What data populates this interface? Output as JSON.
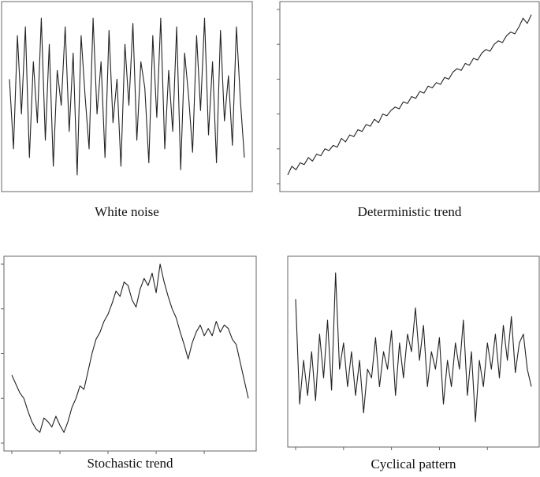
{
  "chart_data": [
    {
      "type": "line",
      "title": "White noise",
      "color": "#222",
      "ylim": [
        0,
        100
      ],
      "xlim": [
        0,
        59
      ],
      "values": [
        60,
        20,
        85,
        40,
        90,
        15,
        70,
        35,
        95,
        25,
        80,
        10,
        65,
        45,
        90,
        30,
        75,
        5,
        85,
        50,
        20,
        95,
        40,
        70,
        15,
        88,
        35,
        60,
        10,
        80,
        45,
        92,
        25,
        70,
        55,
        12,
        85,
        38,
        95,
        20,
        65,
        30,
        90,
        8,
        75,
        50,
        18,
        85,
        42,
        95,
        28,
        70,
        12,
        88,
        36,
        62,
        22,
        90,
        48,
        15
      ]
    },
    {
      "type": "line",
      "title": "Deterministic trend",
      "color": "#222",
      "ylim": [
        0,
        100
      ],
      "xlim": [
        0,
        59
      ],
      "yticks": [
        0,
        20,
        40,
        60,
        80,
        100
      ],
      "values": [
        5,
        10,
        8,
        12,
        11,
        15,
        13,
        17,
        16,
        20,
        19,
        22,
        21,
        26,
        24,
        28,
        27,
        31,
        30,
        34,
        33,
        37,
        35,
        40,
        39,
        42,
        44,
        43,
        47,
        46,
        50,
        49,
        53,
        52,
        56,
        55,
        58,
        57,
        61,
        60,
        64,
        66,
        65,
        69,
        68,
        72,
        71,
        75,
        77,
        76,
        80,
        82,
        81,
        85,
        87,
        86,
        90,
        95,
        92,
        97
      ]
    },
    {
      "type": "line",
      "title": "Stochastic trend",
      "color": "#222",
      "ylim": [
        0,
        100
      ],
      "xlim": [
        0,
        59
      ],
      "yticks": [
        0,
        25,
        50,
        75,
        100
      ],
      "xticks": [
        0,
        12,
        24,
        36,
        48
      ],
      "values": [
        38,
        33,
        28,
        25,
        18,
        12,
        8,
        6,
        14,
        12,
        9,
        15,
        10,
        6,
        12,
        20,
        25,
        32,
        30,
        40,
        50,
        58,
        62,
        68,
        72,
        78,
        85,
        82,
        90,
        88,
        80,
        76,
        86,
        92,
        88,
        95,
        84,
        100,
        90,
        82,
        75,
        70,
        62,
        55,
        47,
        56,
        62,
        66,
        60,
        64,
        60,
        68,
        62,
        66,
        64,
        58,
        55,
        45,
        35,
        25
      ]
    },
    {
      "type": "line",
      "title": "Cyclical pattern",
      "color": "#222",
      "ylim": [
        0,
        100
      ],
      "xlim": [
        0,
        59
      ],
      "xticks": [
        0,
        12,
        24,
        36,
        48
      ],
      "values": [
        80,
        20,
        45,
        25,
        50,
        22,
        60,
        35,
        68,
        28,
        95,
        40,
        55,
        30,
        50,
        25,
        45,
        15,
        40,
        35,
        58,
        30,
        50,
        40,
        62,
        25,
        55,
        35,
        60,
        50,
        75,
        45,
        65,
        30,
        50,
        40,
        58,
        20,
        45,
        30,
        55,
        40,
        68,
        25,
        50,
        10,
        45,
        30,
        55,
        40,
        60,
        35,
        65,
        45,
        70,
        38,
        55,
        60,
        40,
        30
      ]
    }
  ]
}
